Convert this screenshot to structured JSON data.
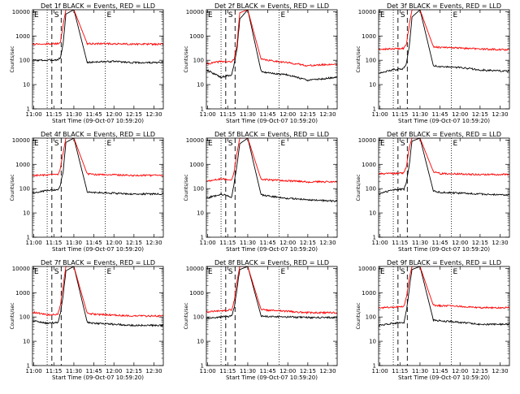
{
  "figure": {
    "x_tick_labels": [
      "11:00",
      "11:15",
      "11:30",
      "11:45",
      "12:00",
      "12:15",
      "12:30"
    ],
    "y_tick_labels": [
      "1",
      "10",
      "100",
      "1000",
      "10000"
    ],
    "ylabel": "Counts/sec",
    "xlabel": "Start Time (09-Oct-07 10:59:20)",
    "marker_labels": {
      "e_left": "E",
      "s_mid": "S",
      "e_right": "E"
    },
    "colors": {
      "events": "#000000",
      "lld": "#ff0000"
    }
  },
  "chart_data": [
    {
      "type": "line",
      "title": "Det 1f BLACK = Events, RED = LLD",
      "xlabel": "Start Time (09-Oct-07 10:59:20)",
      "ylabel": "Counts/sec",
      "x_minutes_after_11_00": [
        -1,
        10,
        18,
        20,
        22,
        24,
        30,
        40,
        45,
        60,
        75,
        97
      ],
      "ylim": [
        1,
        12000
      ],
      "y_scale": "log",
      "series": [
        {
          "name": "Events",
          "color": "#000000",
          "values": [
            100,
            100,
            105,
            130,
            500,
            8000,
            12000,
            80,
            85,
            90,
            80,
            80
          ]
        },
        {
          "name": "LLD",
          "color": "#ff0000",
          "values": [
            470,
            470,
            480,
            600,
            3000,
            12000,
            12000,
            480,
            480,
            480,
            460,
            460
          ]
        }
      ],
      "markers_minutes": {
        "dotted": [
          10,
          53.5
        ],
        "dashed": [
          13.5,
          20.5
        ]
      }
    },
    {
      "type": "line",
      "title": "Det 2f BLACK = Events, RED = LLD",
      "xlabel": "Start Time (09-Oct-07 10:59:20)",
      "ylabel": "Counts/sec",
      "x_minutes_after_11_00": [
        -1,
        10,
        18,
        20,
        22,
        24,
        30,
        40,
        45,
        60,
        75,
        97
      ],
      "ylim": [
        1,
        12000
      ],
      "y_scale": "log",
      "series": [
        {
          "name": "Events",
          "color": "#000000",
          "values": [
            40,
            20,
            25,
            80,
            300,
            5000,
            12000,
            35,
            30,
            25,
            15,
            20
          ]
        },
        {
          "name": "LLD",
          "color": "#ff0000",
          "values": [
            70,
            90,
            85,
            120,
            500,
            9000,
            12000,
            110,
            100,
            80,
            60,
            70
          ]
        }
      ],
      "markers_minutes": {
        "dotted": [
          10,
          53.5
        ],
        "dashed": [
          13.5,
          20.5
        ]
      }
    },
    {
      "type": "line",
      "title": "Det 3f BLACK = Events, RED = LLD",
      "xlabel": "Start Time (09-Oct-07 10:59:20)",
      "ylabel": "Counts/sec",
      "x_minutes_after_11_00": [
        -1,
        10,
        18,
        20,
        22,
        24,
        30,
        40,
        45,
        60,
        75,
        97
      ],
      "ylim": [
        1,
        12000
      ],
      "y_scale": "log",
      "series": [
        {
          "name": "Events",
          "color": "#000000",
          "values": [
            30,
            40,
            45,
            80,
            400,
            6000,
            12000,
            60,
            55,
            50,
            40,
            35
          ]
        },
        {
          "name": "LLD",
          "color": "#ff0000",
          "values": [
            280,
            300,
            310,
            500,
            3000,
            12000,
            12000,
            360,
            340,
            320,
            290,
            270
          ]
        }
      ],
      "markers_minutes": {
        "dotted": [
          10,
          53.5
        ],
        "dashed": [
          13.5,
          20.5
        ]
      }
    },
    {
      "type": "line",
      "title": "Det 4f BLACK = Events, RED = LLD",
      "xlabel": "Start Time (09-Oct-07 10:59:20)",
      "ylabel": "Counts/sec",
      "x_minutes_after_11_00": [
        -1,
        10,
        18,
        20,
        22,
        24,
        30,
        40,
        45,
        60,
        75,
        97
      ],
      "ylim": [
        1,
        12000
      ],
      "y_scale": "log",
      "series": [
        {
          "name": "Events",
          "color": "#000000",
          "values": [
            65,
            85,
            90,
            150,
            500,
            8000,
            12000,
            75,
            70,
            65,
            60,
            60
          ]
        },
        {
          "name": "LLD",
          "color": "#ff0000",
          "values": [
            350,
            360,
            380,
            700,
            3000,
            12000,
            12000,
            400,
            380,
            370,
            350,
            350
          ]
        }
      ],
      "markers_minutes": {
        "dotted": [
          10,
          53.5
        ],
        "dashed": [
          13.5,
          20.5
        ]
      }
    },
    {
      "type": "line",
      "title": "Det 5f BLACK = Events, RED = LLD",
      "xlabel": "Start Time (09-Oct-07 10:59:20)",
      "ylabel": "Counts/sec",
      "x_minutes_after_11_00": [
        -1,
        10,
        18,
        20,
        22,
        24,
        30,
        40,
        45,
        60,
        75,
        97
      ],
      "ylim": [
        1,
        12000
      ],
      "y_scale": "log",
      "series": [
        {
          "name": "Events",
          "color": "#000000",
          "values": [
            40,
            60,
            45,
            200,
            1000,
            7000,
            12000,
            55,
            50,
            40,
            35,
            30
          ]
        },
        {
          "name": "LLD",
          "color": "#ff0000",
          "values": [
            200,
            250,
            230,
            600,
            3000,
            12000,
            12000,
            240,
            230,
            210,
            190,
            190
          ]
        }
      ],
      "markers_minutes": {
        "dotted": [
          10,
          53.5
        ],
        "dashed": [
          13.5,
          20.5
        ]
      }
    },
    {
      "type": "line",
      "title": "Det 6f BLACK = Events, RED = LLD",
      "xlabel": "Start Time (09-Oct-07 10:59:20)",
      "ylabel": "Counts/sec",
      "x_minutes_after_11_00": [
        -1,
        10,
        18,
        20,
        22,
        24,
        30,
        40,
        45,
        60,
        75,
        97
      ],
      "ylim": [
        1,
        12000
      ],
      "y_scale": "log",
      "series": [
        {
          "name": "Events",
          "color": "#000000",
          "values": [
            60,
            90,
            95,
            200,
            1000,
            9000,
            12000,
            80,
            70,
            65,
            60,
            55
          ]
        },
        {
          "name": "LLD",
          "color": "#ff0000",
          "values": [
            400,
            420,
            440,
            900,
            5000,
            12000,
            12000,
            500,
            420,
            400,
            380,
            380
          ]
        }
      ],
      "markers_minutes": {
        "dotted": [
          10,
          53.5
        ],
        "dashed": [
          13.5,
          20.5
        ]
      }
    },
    {
      "type": "line",
      "title": "Det 7f BLACK = Events, RED = LLD",
      "xlabel": "Start Time (09-Oct-07 10:59:20)",
      "ylabel": "Counts/sec",
      "x_minutes_after_11_00": [
        -1,
        10,
        18,
        20,
        22,
        24,
        30,
        40,
        45,
        60,
        75,
        97
      ],
      "ylim": [
        1,
        12000
      ],
      "y_scale": "log",
      "series": [
        {
          "name": "Events",
          "color": "#000000",
          "values": [
            70,
            55,
            60,
            150,
            800,
            8000,
            12000,
            60,
            55,
            50,
            45,
            45
          ]
        },
        {
          "name": "LLD",
          "color": "#ff0000",
          "values": [
            160,
            120,
            130,
            300,
            2000,
            12000,
            12000,
            140,
            130,
            120,
            110,
            110
          ]
        }
      ],
      "markers_minutes": {
        "dotted": [
          10,
          53.5
        ],
        "dashed": [
          13.5,
          20.5
        ]
      }
    },
    {
      "type": "line",
      "title": "Det 8f BLACK = Events, RED = LLD",
      "xlabel": "Start Time (09-Oct-07 10:59:20)",
      "ylabel": "Counts/sec",
      "x_minutes_after_11_00": [
        -1,
        10,
        18,
        20,
        22,
        24,
        30,
        40,
        45,
        60,
        75,
        97
      ],
      "ylim": [
        1,
        12000
      ],
      "y_scale": "log",
      "series": [
        {
          "name": "Events",
          "color": "#000000",
          "values": [
            90,
            100,
            110,
            250,
            1500,
            9000,
            12000,
            110,
            105,
            100,
            95,
            95
          ]
        },
        {
          "name": "LLD",
          "color": "#ff0000",
          "values": [
            160,
            180,
            200,
            500,
            3000,
            12000,
            12000,
            200,
            190,
            170,
            150,
            150
          ]
        }
      ],
      "markers_minutes": {
        "dotted": [
          10,
          53.5
        ],
        "dashed": [
          13.5,
          20.5
        ]
      }
    },
    {
      "type": "line",
      "title": "Det 9f BLACK = Events, RED = LLD",
      "xlabel": "Start Time (09-Oct-07 10:59:20)",
      "ylabel": "Counts/sec",
      "x_minutes_after_11_00": [
        -1,
        10,
        18,
        20,
        22,
        24,
        30,
        40,
        45,
        60,
        75,
        97
      ],
      "ylim": [
        1,
        12000
      ],
      "y_scale": "log",
      "series": [
        {
          "name": "Events",
          "color": "#000000",
          "values": [
            45,
            55,
            60,
            200,
            1500,
            9000,
            12000,
            75,
            70,
            60,
            50,
            50
          ]
        },
        {
          "name": "LLD",
          "color": "#ff0000",
          "values": [
            240,
            250,
            270,
            700,
            4000,
            12000,
            12000,
            300,
            290,
            270,
            240,
            240
          ]
        }
      ],
      "markers_minutes": {
        "dotted": [
          10,
          53.5
        ],
        "dashed": [
          13.5,
          20.5
        ]
      }
    }
  ]
}
